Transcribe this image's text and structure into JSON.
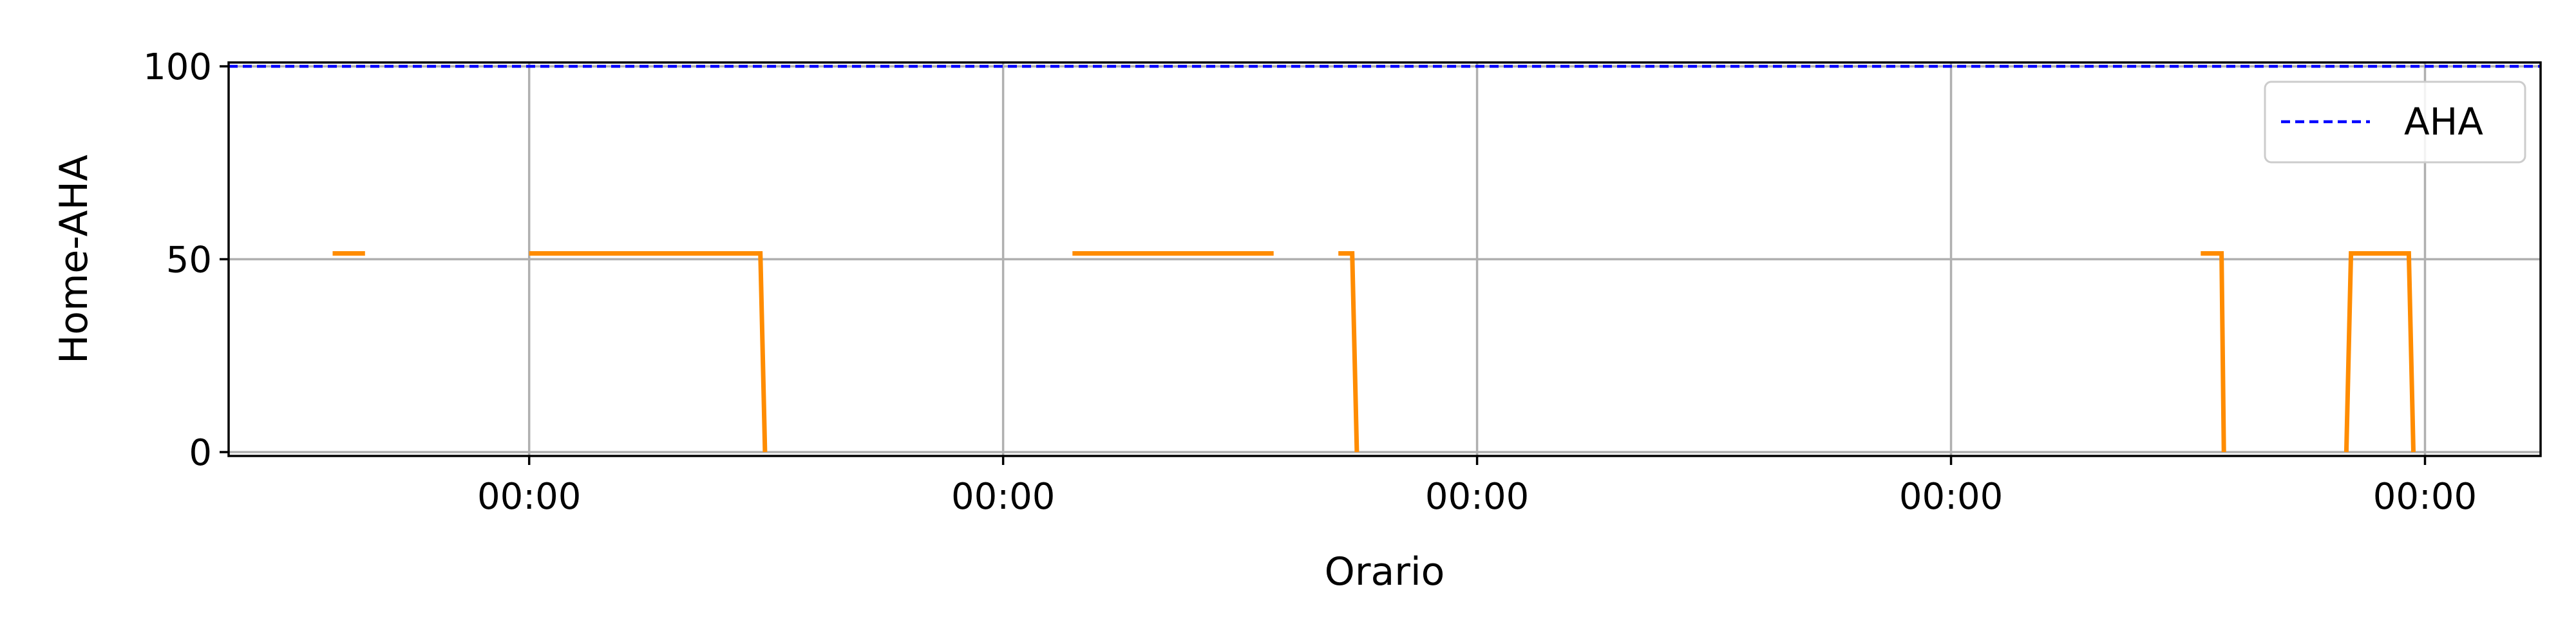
{
  "chart_data": {
    "type": "line",
    "xlabel": "Orario",
    "ylabel": "Home-AHA",
    "xlim": [
      0,
      100
    ],
    "ylim": [
      -1,
      101
    ],
    "x_ticks": [
      {
        "x": 13,
        "label": "00:00"
      },
      {
        "x": 33.5,
        "label": "00:00"
      },
      {
        "x": 54,
        "label": "00:00"
      },
      {
        "x": 74.5,
        "label": "00:00"
      },
      {
        "x": 95,
        "label": "00:00"
      }
    ],
    "y_ticks": [
      {
        "y": 0,
        "label": "0"
      },
      {
        "y": 50,
        "label": "50"
      },
      {
        "y": 100,
        "label": "100"
      }
    ],
    "grid": true,
    "legend_position": "top-right",
    "colors": {
      "aha": "#0000ff",
      "series": "#ff8c00",
      "grid": "#b0b0b0"
    },
    "series": [
      {
        "name": "AHA",
        "style": "dashed",
        "segments": [
          [
            [
              0,
              100
            ],
            [
              100,
              100
            ]
          ]
        ]
      },
      {
        "name": "",
        "style": "solid",
        "segments": [
          [
            [
              4.5,
              51.5
            ],
            [
              5.9,
              51.5
            ]
          ],
          [
            [
              13,
              51.5
            ],
            [
              23,
              51.5
            ],
            [
              23.2,
              0
            ]
          ],
          [
            [
              36.5,
              51.5
            ],
            [
              45.2,
              51.5
            ]
          ],
          [
            [
              48,
              51.5
            ],
            [
              48.6,
              51.5
            ],
            [
              48.8,
              0
            ]
          ],
          [
            [
              85.3,
              51.5
            ],
            [
              86.2,
              51.5
            ],
            [
              86.3,
              0
            ]
          ],
          [
            [
              91.6,
              0
            ],
            [
              91.8,
              51.5
            ],
            [
              94.3,
              51.5
            ],
            [
              94.5,
              0
            ]
          ]
        ]
      }
    ]
  }
}
